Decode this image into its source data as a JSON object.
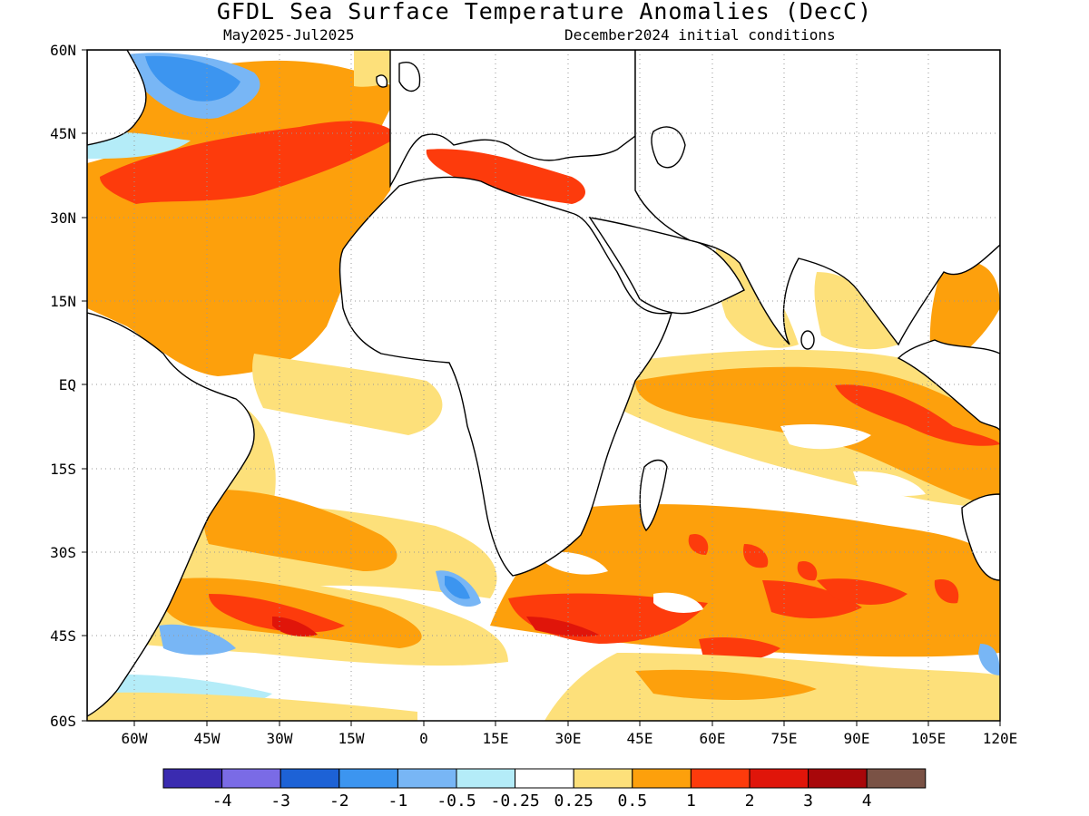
{
  "title": "GFDL Sea Surface Temperature Anomalies (DecC)",
  "subtitle_left": "May2025-Jul2025",
  "subtitle_right": "December2024 initial conditions",
  "map": {
    "lon_range": [
      -70,
      120
    ],
    "lat_range": [
      -60,
      60
    ],
    "lon_ticks": [
      "60W",
      "45W",
      "30W",
      "15W",
      "0",
      "15E",
      "30E",
      "45E",
      "60E",
      "75E",
      "90E",
      "105E",
      "120E"
    ],
    "lat_ticks": [
      "60N",
      "45N",
      "30N",
      "15N",
      "EQ",
      "15S",
      "30S",
      "45S",
      "60S"
    ],
    "grid": "dotted"
  },
  "colorbar": {
    "colors": [
      "#3a2bb0",
      "#7a6be6",
      "#1d62d6",
      "#3c95f0",
      "#78b6f5",
      "#b4ecf8",
      "#ffffff",
      "#fde07a",
      "#fda00c",
      "#fd3b0c",
      "#e0150a",
      "#a8070a",
      "#7a5245"
    ],
    "labels": [
      "-4",
      "-3",
      "-2",
      "-1",
      "-0.5",
      "-0.25",
      "0.25",
      "0.5",
      "1",
      "2",
      "3",
      "4"
    ]
  }
}
